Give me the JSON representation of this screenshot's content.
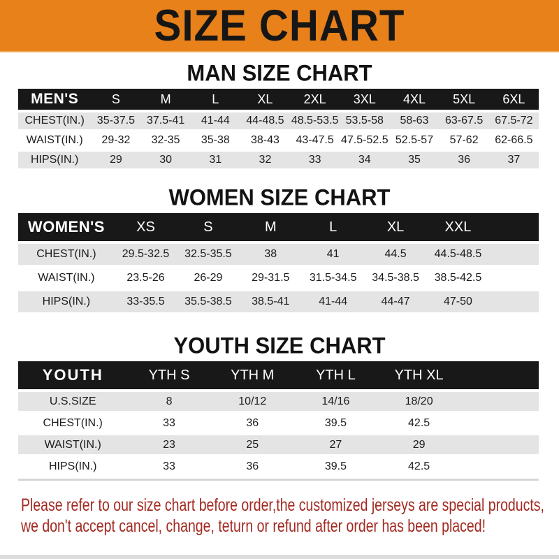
{
  "banner": {
    "title": "SIZE CHART"
  },
  "sections": {
    "men": {
      "title": "MAN SIZE CHART"
    },
    "women": {
      "title": "WOMEN SIZE CHART"
    },
    "youth": {
      "title": "YOUTH SIZE CHART"
    }
  },
  "tables": {
    "men": {
      "header_label": "MEN'S",
      "sizes": [
        "S",
        "M",
        "L",
        "XL",
        "2XL",
        "3XL",
        "4XL",
        "5XL",
        "6XL"
      ],
      "rows": [
        {
          "label": "CHEST(IN.)",
          "values": [
            "35-37.5",
            "37.5-41",
            "41-44",
            "44-48.5",
            "48.5-53.5",
            "53.5-58",
            "58-63",
            "63-67.5",
            "67.5-72"
          ]
        },
        {
          "label": "WAIST(IN.)",
          "values": [
            "29-32",
            "32-35",
            "35-38",
            "38-43",
            "43-47.5",
            "47.5-52.5",
            "52.5-57",
            "57-62",
            "62-66.5"
          ]
        },
        {
          "label": "HIPS(IN.)",
          "values": [
            "29",
            "30",
            "31",
            "32",
            "33",
            "34",
            "35",
            "36",
            "37"
          ]
        }
      ]
    },
    "women": {
      "header_label": "WOMEN'S",
      "sizes": [
        "XS",
        "S",
        "M",
        "L",
        "XL",
        "XXL"
      ],
      "rows": [
        {
          "label": "CHEST(IN.)",
          "values": [
            "29.5-32.5",
            "32.5-35.5",
            "38",
            "41",
            "44.5",
            "44.5-48.5"
          ]
        },
        {
          "label": "WAIST(IN.)",
          "values": [
            "23.5-26",
            "26-29",
            "29-31.5",
            "31.5-34.5",
            "34.5-38.5",
            "38.5-42.5"
          ]
        },
        {
          "label": "HIPS(IN.)",
          "values": [
            "33-35.5",
            "35.5-38.5",
            "38.5-41",
            "41-44",
            "44-47",
            "47-50"
          ]
        }
      ]
    },
    "youth": {
      "header_label": "YOUTH",
      "sizes": [
        "YTH S",
        "YTH M",
        "YTH L",
        "YTH XL"
      ],
      "rows": [
        {
          "label": "U.S.SIZE",
          "values": [
            "8",
            "10/12",
            "14/16",
            "18/20"
          ]
        },
        {
          "label": "CHEST(IN.)",
          "values": [
            "33",
            "36",
            "39.5",
            "42.5"
          ]
        },
        {
          "label": "WAIST(IN.)",
          "values": [
            "23",
            "25",
            "27",
            "29"
          ]
        },
        {
          "label": "HIPS(IN.)",
          "values": [
            "33",
            "36",
            "39.5",
            "42.5"
          ]
        }
      ]
    }
  },
  "footer": {
    "line1": "Please refer to our size chart before order,the customized jerseys are special products,",
    "line2": "we don't accept cancel, change, teturn or refund after order has been placed!"
  },
  "colors": {
    "banner_orange": "#e8811a",
    "band_black": "#181818",
    "row_gray": "#e4e4e4",
    "row_white": "#ffffff",
    "footer_red": "#a32a22"
  }
}
